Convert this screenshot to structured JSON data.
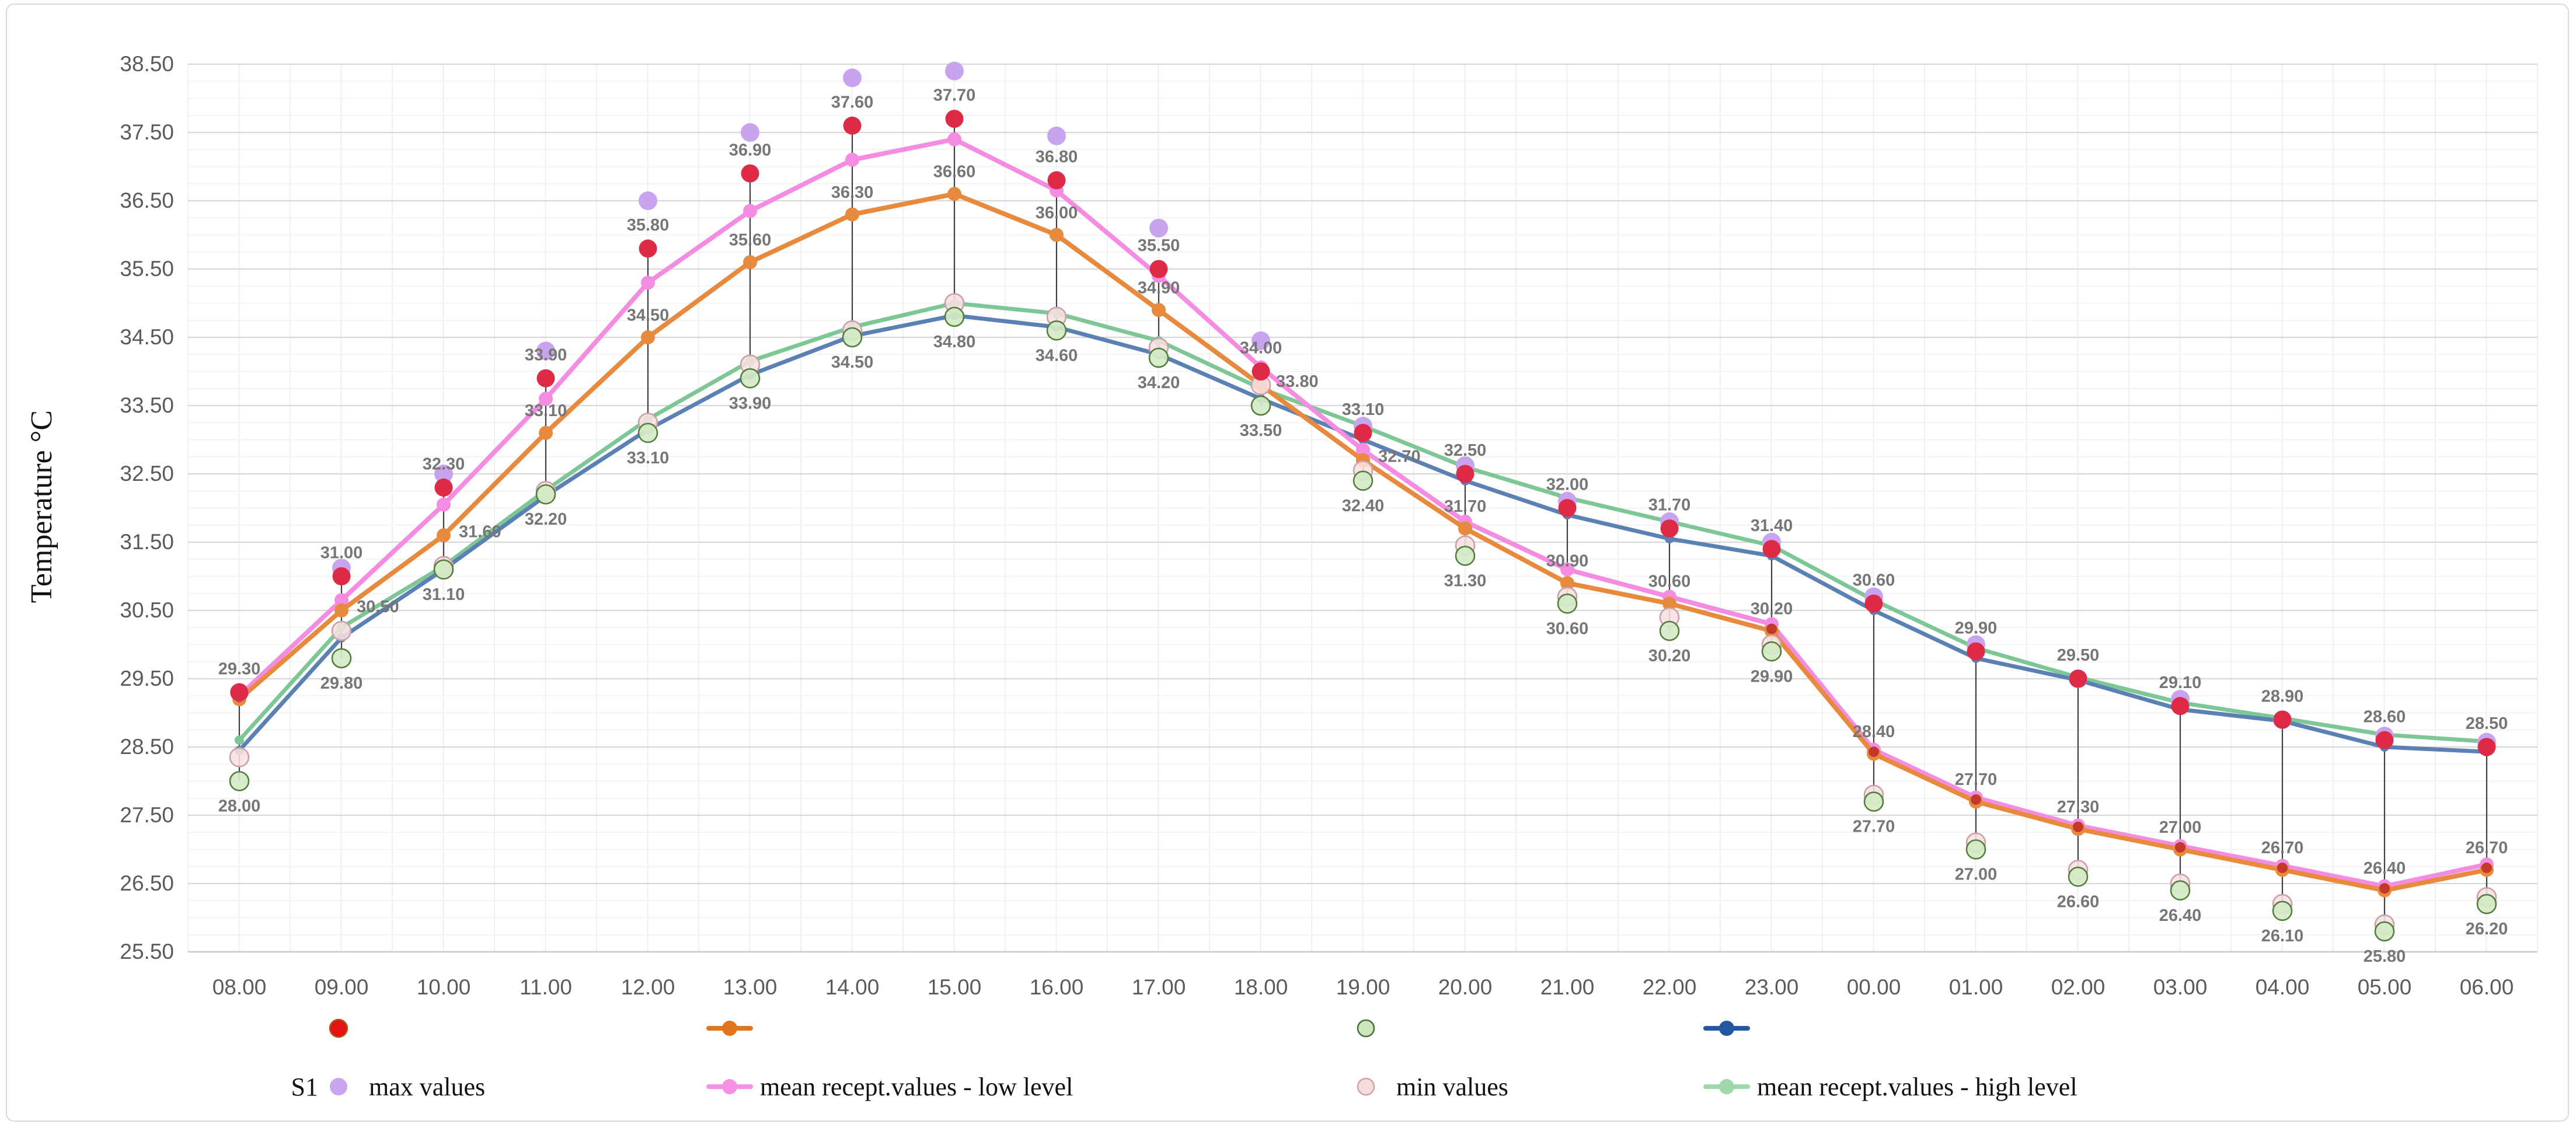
{
  "figure": {
    "y_axis_title": "Temperature °C",
    "sensor_group_label": "S1"
  },
  "chart_data": {
    "type": "line",
    "title": "",
    "xlabel": "",
    "ylabel": "Temperature °C",
    "ylim": [
      25.5,
      38.5
    ],
    "y_major_step": 1.0,
    "y_minor_step": 0.25,
    "grid": true,
    "legend_position": "bottom",
    "y_tick_labels": [
      "38.50",
      "37.50",
      "36.50",
      "35.50",
      "34.50",
      "33.50",
      "32.50",
      "31.50",
      "30.50",
      "29.50",
      "28.50",
      "27.50",
      "26.50",
      "25.50"
    ],
    "categories": [
      "08.00",
      "09.00",
      "10.00",
      "11.00",
      "12.00",
      "13.00",
      "14.00",
      "15.00",
      "16.00",
      "17.00",
      "18.00",
      "19.00",
      "20.00",
      "21.00",
      "22.00",
      "23.00",
      "00.00",
      "01.00",
      "02.00",
      "03.00",
      "04.00",
      "05.00",
      "06.00"
    ],
    "series": [
      {
        "key": "max_purple",
        "name": "max values",
        "group": "S1",
        "type": "scatter",
        "marker": "dot",
        "color": "#c9a4ee",
        "values": [
          29.3,
          31.12,
          32.5,
          34.3,
          36.5,
          37.5,
          38.3,
          38.4,
          37.45,
          36.1,
          34.45,
          33.2,
          32.62,
          32.1,
          31.8,
          31.5,
          30.7,
          30.0,
          29.5,
          29.2,
          28.9,
          28.66,
          28.57
        ]
      },
      {
        "key": "max_red",
        "name": "",
        "group": "S2",
        "type": "scatter",
        "marker": "dot",
        "color": "#dd2a47",
        "stroke": "#a8462a",
        "labeled": "top",
        "values": [
          29.3,
          31.0,
          32.3,
          33.9,
          35.8,
          36.9,
          37.6,
          37.7,
          36.8,
          35.5,
          34.0,
          33.1,
          32.5,
          32.0,
          31.7,
          31.4,
          30.6,
          29.9,
          29.5,
          29.1,
          28.9,
          28.6,
          28.5
        ]
      },
      {
        "key": "mean_low_pink",
        "name": "mean recept.values - low level",
        "group": "S1",
        "type": "line",
        "marker": "dot",
        "color": "#f48de2",
        "values": [
          29.25,
          30.65,
          32.05,
          33.6,
          35.3,
          36.35,
          37.1,
          37.4,
          36.65,
          35.4,
          34.06,
          32.85,
          31.8,
          31.1,
          30.7,
          30.3,
          28.46,
          27.76,
          27.35,
          27.05,
          26.76,
          26.46,
          26.78
        ]
      },
      {
        "key": "mean_low_orange",
        "name": "",
        "group": "S2",
        "type": "line",
        "marker": "dot",
        "color": "#e88a3d",
        "labeled": "mid",
        "values": [
          29.2,
          30.5,
          31.6,
          33.1,
          34.5,
          35.6,
          36.3,
          36.6,
          36.0,
          34.9,
          33.8,
          32.7,
          31.7,
          30.9,
          30.6,
          30.2,
          28.4,
          27.7,
          27.3,
          27.0,
          26.7,
          26.4,
          26.7
        ]
      },
      {
        "key": "min_pink",
        "name": "min values",
        "group": "S1",
        "type": "scatter",
        "marker": "circle",
        "color": "#f7e0e1",
        "stroke": "#cc9fa6",
        "values": [
          28.35,
          30.2,
          31.15,
          32.25,
          33.25,
          34.1,
          34.6,
          35.0,
          34.8,
          34.35,
          33.8,
          32.55,
          31.45,
          30.7,
          30.4,
          30.0,
          27.8,
          27.1,
          26.7,
          26.5,
          26.2,
          25.9,
          26.3
        ]
      },
      {
        "key": "min_green",
        "name": "",
        "group": "S2",
        "type": "scatter",
        "marker": "circle",
        "color": "#d3eac6",
        "stroke": "#567d3e",
        "labeled": "bottom",
        "values": [
          28.0,
          29.8,
          31.1,
          32.2,
          33.1,
          33.9,
          34.5,
          34.8,
          34.6,
          34.2,
          33.5,
          32.4,
          31.3,
          30.6,
          30.2,
          29.9,
          27.7,
          27.0,
          26.6,
          26.4,
          26.1,
          25.8,
          26.2
        ]
      },
      {
        "key": "mean_high_green",
        "name": "mean recept.values - high level",
        "group": "S1",
        "type": "line",
        "marker": "dot",
        "color": "#7cc795",
        "values": [
          28.6,
          30.25,
          31.15,
          32.26,
          33.3,
          34.15,
          34.65,
          35.0,
          34.85,
          34.45,
          33.75,
          33.2,
          32.6,
          32.15,
          31.8,
          31.45,
          30.65,
          29.95,
          29.52,
          29.15,
          28.92,
          28.68,
          28.58
        ]
      },
      {
        "key": "mean_high_blue",
        "name": "",
        "group": "S2",
        "type": "line",
        "marker": "dot",
        "color": "#5b80b4",
        "values": [
          28.45,
          30.1,
          31.1,
          32.18,
          33.15,
          33.95,
          34.52,
          34.82,
          34.65,
          34.25,
          33.6,
          33.0,
          32.4,
          31.9,
          31.55,
          31.3,
          30.5,
          29.8,
          29.48,
          29.05,
          28.88,
          28.5,
          28.43
        ]
      }
    ],
    "error_bars": {
      "from_series": "max_red",
      "to_series": "min_green",
      "color": "#3f3f3f"
    },
    "secondary_red_dots": {
      "color": "#c2392b",
      "at_indices": [
        0,
        15,
        16,
        17,
        18,
        19,
        20,
        21,
        22
      ],
      "follows": "mean_low_orange",
      "offset": 0.03
    },
    "data_label_color": "#767676",
    "annotations": {
      "top_labels": [
        "29.30",
        "31.00",
        "32.30",
        "33.90",
        "35.80",
        "36.90",
        "37.60",
        "37.70",
        "36.80",
        "35.50",
        "34.00",
        "33.10",
        "32.50",
        "32.00",
        "31.70",
        "31.40",
        "30.60",
        "29.90",
        "29.50",
        "29.10",
        "28.90",
        "28.60",
        "28.50"
      ],
      "mid_labels": [
        "",
        "30.50",
        "31.60",
        "33.10",
        "34.50",
        "35.60",
        "36.30",
        "36.60",
        "36.00",
        "34.90",
        "33.80",
        "32.70",
        "31.70",
        "30.90",
        "30.60",
        "30.20",
        "28.40",
        "27.70",
        "27.30",
        "27.00",
        "26.70",
        "26.40",
        "26.70"
      ],
      "bottom_labels": [
        "28.00",
        "29.80",
        "31.10",
        "32.20",
        "33.10",
        "33.90",
        "34.50",
        "34.80",
        "34.60",
        "34.20",
        "33.50",
        "32.40",
        "31.30",
        "30.60",
        "30.20",
        "29.90",
        "27.70",
        "27.00",
        "26.60",
        "26.40",
        "26.10",
        "25.80",
        "26.20"
      ]
    },
    "legend": {
      "row1": [
        {
          "icon": "red-dot",
          "color": "#e41414",
          "stroke": "#a85a1e",
          "label": ""
        },
        {
          "icon": "orange-line-dot",
          "color": "#e2761f",
          "label": ""
        },
        {
          "icon": "green-circle",
          "color": "#cde6bd",
          "stroke": "#4a7238",
          "label": ""
        },
        {
          "icon": "blue-line-dot",
          "color": "#2257a3",
          "label": ""
        }
      ],
      "row2_prefix": "S1",
      "row2": [
        {
          "icon": "purple-dot",
          "color": "#cba4ee",
          "label": "max values"
        },
        {
          "icon": "pink-line-dot",
          "color": "#f592e6",
          "label": "mean recept.values - low level"
        },
        {
          "icon": "pink-circle",
          "color": "#f6dddd",
          "stroke": "#cfa3a8",
          "label": "min values"
        },
        {
          "icon": "green-line-dot",
          "color": "#9fd6aa",
          "label": "mean recept.values - high level"
        }
      ]
    }
  }
}
